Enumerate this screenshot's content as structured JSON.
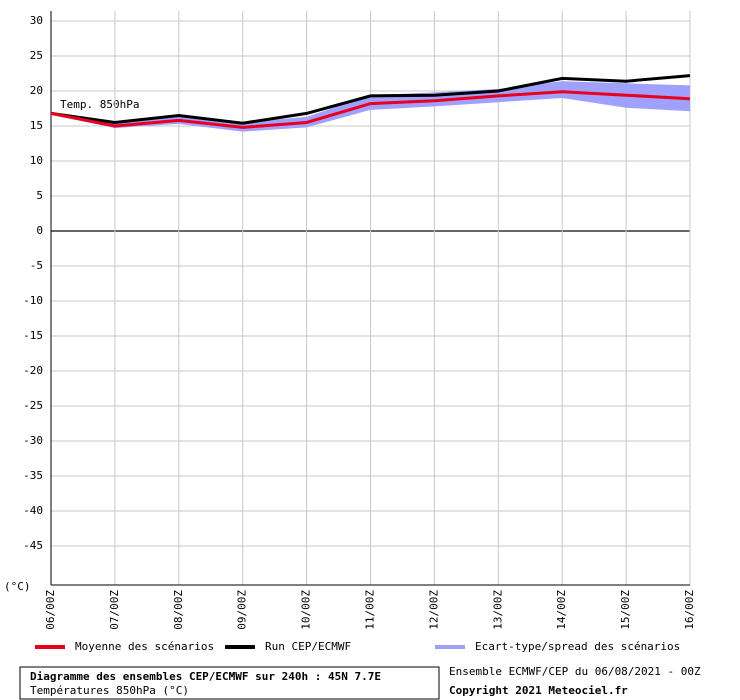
{
  "chart_data": {
    "type": "line",
    "annotation": "Temp. 850hPa",
    "y_label": "(°C)",
    "footer": {
      "title": "Diagramme des ensembles CEP/ECMWF sur 240h : 45N 7.7E",
      "subtitle": "Températures 850hPa (°C)",
      "run_info": "Ensemble ECMWF/CEP du 06/08/2021 - 00Z",
      "copyright": "Copyright 2021 Meteociel.fr"
    },
    "categories": [
      "06/00Z",
      "07/00Z",
      "08/00Z",
      "09/00Z",
      "10/00Z",
      "11/00Z",
      "12/00Z",
      "13/00Z",
      "14/00Z",
      "15/00Z",
      "16/00Z"
    ],
    "ylim": [
      -50,
      30
    ],
    "yticks": [
      30,
      25,
      20,
      15,
      10,
      5,
      0,
      -5,
      -10,
      -15,
      -20,
      -25,
      -30,
      -35,
      -40,
      -45
    ],
    "grid": true,
    "spread": {
      "name": "Ecart-type/spread des scénarios",
      "color": "#a0a0ff",
      "upper": [
        17.0,
        15.5,
        16.3,
        15.5,
        16.3,
        19.4,
        19.8,
        20.3,
        21.4,
        21.1,
        20.8
      ],
      "lower": [
        16.6,
        14.7,
        15.3,
        14.2,
        14.8,
        17.3,
        17.8,
        18.4,
        19.0,
        17.6,
        17.1
      ]
    },
    "series": [
      {
        "name": "Moyenne des scénarios",
        "color": "#e8001c",
        "values": [
          16.8,
          15.0,
          15.8,
          14.8,
          15.5,
          18.2,
          18.6,
          19.3,
          19.9,
          19.4,
          18.9
        ]
      },
      {
        "name": "Run CEP/ECMWF",
        "color": "#000000",
        "values": [
          16.8,
          15.5,
          16.5,
          15.4,
          16.8,
          19.3,
          19.4,
          20.0,
          21.8,
          21.4,
          22.2
        ]
      }
    ]
  }
}
